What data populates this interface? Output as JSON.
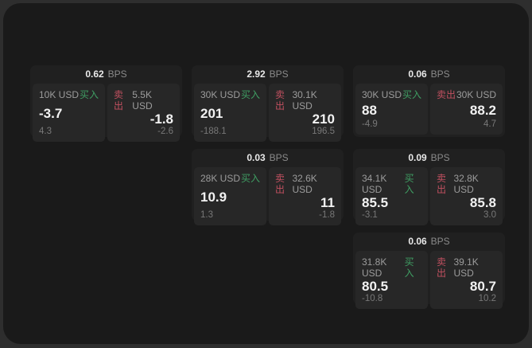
{
  "labels": {
    "bps": "BPS",
    "buy": "买入",
    "sell": "卖出"
  },
  "colors": {
    "buy": "#3f9e63",
    "sell": "#c15060",
    "panel_bg": "#1a1a1a",
    "page_bg": "#2e2e2e",
    "card_bg": "#202020",
    "tile_bg": "#272727"
  },
  "cards": [
    {
      "bps": "0.62",
      "buy": {
        "amount": "10K USD",
        "value": "-3.7",
        "delta": "4.3"
      },
      "sell": {
        "amount": "5.5K USD",
        "value": "-1.8",
        "delta": "-2.6"
      }
    },
    {
      "bps": "2.92",
      "buy": {
        "amount": "30K USD",
        "value": "201",
        "delta": "-188.1"
      },
      "sell": {
        "amount": "30.1K USD",
        "value": "210",
        "delta": "196.5"
      }
    },
    {
      "bps": "0.06",
      "buy": {
        "amount": "30K USD",
        "value": "88",
        "delta": "-4.9"
      },
      "sell": {
        "amount": "30K USD",
        "value": "88.2",
        "delta": "4.7"
      }
    },
    {
      "bps": "0.03",
      "buy": {
        "amount": "28K USD",
        "value": "10.9",
        "delta": "1.3"
      },
      "sell": {
        "amount": "32.6K USD",
        "value": "11",
        "delta": "-1.8"
      }
    },
    {
      "bps": "0.09",
      "buy": {
        "amount": "34.1K USD",
        "value": "85.5",
        "delta": "-3.1"
      },
      "sell": {
        "amount": "32.8K USD",
        "value": "85.8",
        "delta": "3.0"
      }
    },
    {
      "bps": "0.06",
      "buy": {
        "amount": "31.8K USD",
        "value": "80.5",
        "delta": "-10.8"
      },
      "sell": {
        "amount": "39.1K USD",
        "value": "80.7",
        "delta": "10.2"
      }
    }
  ]
}
